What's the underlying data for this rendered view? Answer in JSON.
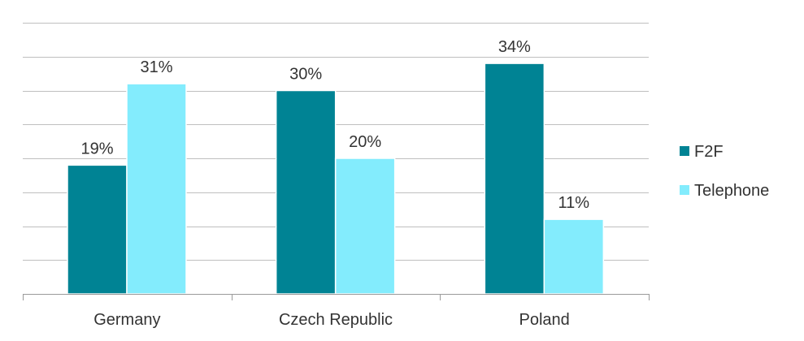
{
  "chart_data": {
    "type": "bar",
    "categories": [
      "Germany",
      "Czech Republic",
      "Poland"
    ],
    "series": [
      {
        "name": "F2F",
        "values": [
          19,
          30,
          34
        ],
        "labels": [
          "19%",
          "30%",
          "34%"
        ],
        "color": "#008394"
      },
      {
        "name": "Telephone",
        "values": [
          31,
          20,
          11
        ],
        "labels": [
          "31%",
          "20%",
          "11%"
        ],
        "color": "#83ECFD"
      }
    ],
    "ylim": [
      0,
      40
    ],
    "grid": true,
    "legend_position": "right",
    "yaxis_labels_visible": false
  }
}
